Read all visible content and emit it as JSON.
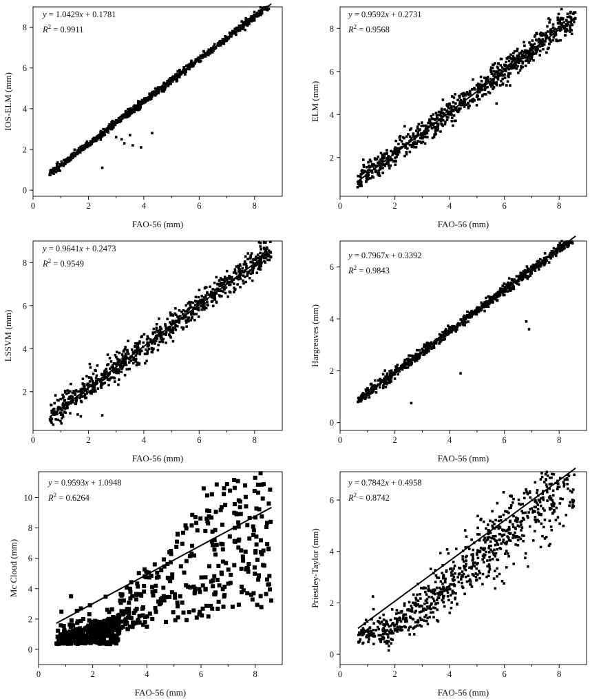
{
  "chart_data": [
    {
      "type": "scatter",
      "xlabel": "FAO-56 (mm)",
      "ylabel": "IOS-ELM (mm)",
      "xlim": [
        0,
        9
      ],
      "ylim": [
        -0.3,
        9
      ],
      "xticks": [
        "0",
        "2",
        "4",
        "6",
        "8"
      ],
      "yticks": [
        "0",
        "2",
        "4",
        "6",
        "8"
      ],
      "equation": "= 1.0429x + 0.1781",
      "r2": "= 0.9911",
      "fit": {
        "slope": 1.0429,
        "intercept": 0.1781,
        "x_range": [
          0.6,
          8.6
        ]
      },
      "points": {
        "count": 850,
        "x_range": [
          0.6,
          8.6
        ],
        "spread": 0.09,
        "outliers": [
          [
            2.5,
            1.1
          ],
          [
            3.0,
            2.6
          ],
          [
            3.3,
            2.3
          ],
          [
            3.6,
            2.2
          ],
          [
            3.9,
            2.1
          ],
          [
            4.3,
            2.8
          ],
          [
            3.5,
            2.7
          ],
          [
            3.2,
            2.5
          ]
        ]
      }
    },
    {
      "type": "scatter",
      "xlabel": "FAO-56 (mm)",
      "ylabel": "ELM (mm)",
      "xlim": [
        0,
        9
      ],
      "ylim": [
        0.2,
        9.0
      ],
      "xticks": [
        "0",
        "2",
        "4",
        "6",
        "8"
      ],
      "yticks": [
        "2",
        "4",
        "6",
        "8"
      ],
      "equation": "= 0.9592x + 0.2731",
      "r2": "= 0.9568",
      "fit": {
        "slope": 0.9592,
        "intercept": 0.2731,
        "x_range": [
          0.6,
          8.6
        ]
      },
      "points": {
        "count": 850,
        "x_range": [
          0.6,
          8.6
        ],
        "spread": 0.28,
        "outliers": []
      }
    },
    {
      "type": "scatter",
      "xlabel": "FAO-56 (mm)",
      "ylabel": "LSSVM (mm)",
      "xlim": [
        0,
        9
      ],
      "ylim": [
        0.2,
        9.0
      ],
      "xticks": [
        "0",
        "2",
        "4",
        "6",
        "8"
      ],
      "yticks": [
        "2",
        "4",
        "6",
        "8"
      ],
      "equation": "= 0.9641x + 0.2473",
      "r2": "= 0.9549",
      "fit": {
        "slope": 0.9641,
        "intercept": 0.2473,
        "x_range": [
          0.6,
          8.6
        ]
      },
      "points": {
        "count": 850,
        "x_range": [
          0.6,
          8.6
        ],
        "spread": 0.3,
        "outliers": [
          [
            2.5,
            0.9
          ]
        ]
      }
    },
    {
      "type": "scatter",
      "xlabel": "FAO-56 (mm)",
      "ylabel": "Hargreaves (mm)",
      "xlim": [
        0,
        9
      ],
      "ylim": [
        -0.3,
        7.0
      ],
      "xticks": [
        "0",
        "2",
        "4",
        "6",
        "8"
      ],
      "yticks": [
        "0",
        "2",
        "4",
        "6"
      ],
      "equation": "= 0.7967x + 0.3392",
      "r2": "= 0.9843",
      "fit": {
        "slope": 0.7967,
        "intercept": 0.3392,
        "x_range": [
          0.65,
          8.6
        ]
      },
      "points": {
        "count": 850,
        "x_range": [
          0.65,
          8.6
        ],
        "spread": 0.1,
        "outliers": [
          [
            2.6,
            0.75
          ],
          [
            4.4,
            1.9
          ],
          [
            6.9,
            3.6
          ],
          [
            6.8,
            3.9
          ]
        ]
      }
    },
    {
      "type": "scatter",
      "xlabel": "FAO-56 (mm)",
      "ylabel": "Mc Cloud (mm)",
      "xlim": [
        0,
        9
      ],
      "ylim": [
        -1.0,
        11.7
      ],
      "xticks": [
        "0",
        "2",
        "4",
        "6",
        "8"
      ],
      "yticks": [
        "0",
        "2",
        "4",
        "6",
        "8",
        "10"
      ],
      "equation": "= 0.9593x + 1.0948",
      "r2": "= 0.6264",
      "fit": {
        "slope": 0.9593,
        "intercept": 1.0948,
        "x_range": [
          0.65,
          8.6
        ]
      },
      "points": {
        "count": 700,
        "x_range": [
          0.65,
          8.6
        ],
        "spread": 0,
        "outliers": [
          [
            8.2,
            11.6
          ],
          [
            8.0,
            11.3
          ],
          [
            6.1,
            10.6
          ],
          [
            1.2,
            3.5
          ]
        ]
      }
    },
    {
      "type": "scatter",
      "xlabel": "FAO-56 (mm)",
      "ylabel": "Priestley-Taylor (mm)",
      "xlim": [
        0,
        9
      ],
      "ylim": [
        -0.4,
        7.1
      ],
      "xticks": [
        "0",
        "2",
        "4",
        "6",
        "8"
      ],
      "yticks": [
        "0",
        "2",
        "4",
        "6"
      ],
      "equation": "= 0.7842x + 0.4958",
      "r2": "= 0.8742",
      "fit": {
        "slope": 0.7842,
        "intercept": 0.4958,
        "x_range": [
          0.65,
          8.6
        ]
      },
      "points": {
        "count": 850,
        "x_range": [
          0.65,
          8.6
        ],
        "spread": 0,
        "outliers": [
          [
            1.2,
            2.25
          ],
          [
            7.8,
            7.0
          ],
          [
            8.5,
            5.8
          ]
        ]
      }
    }
  ]
}
